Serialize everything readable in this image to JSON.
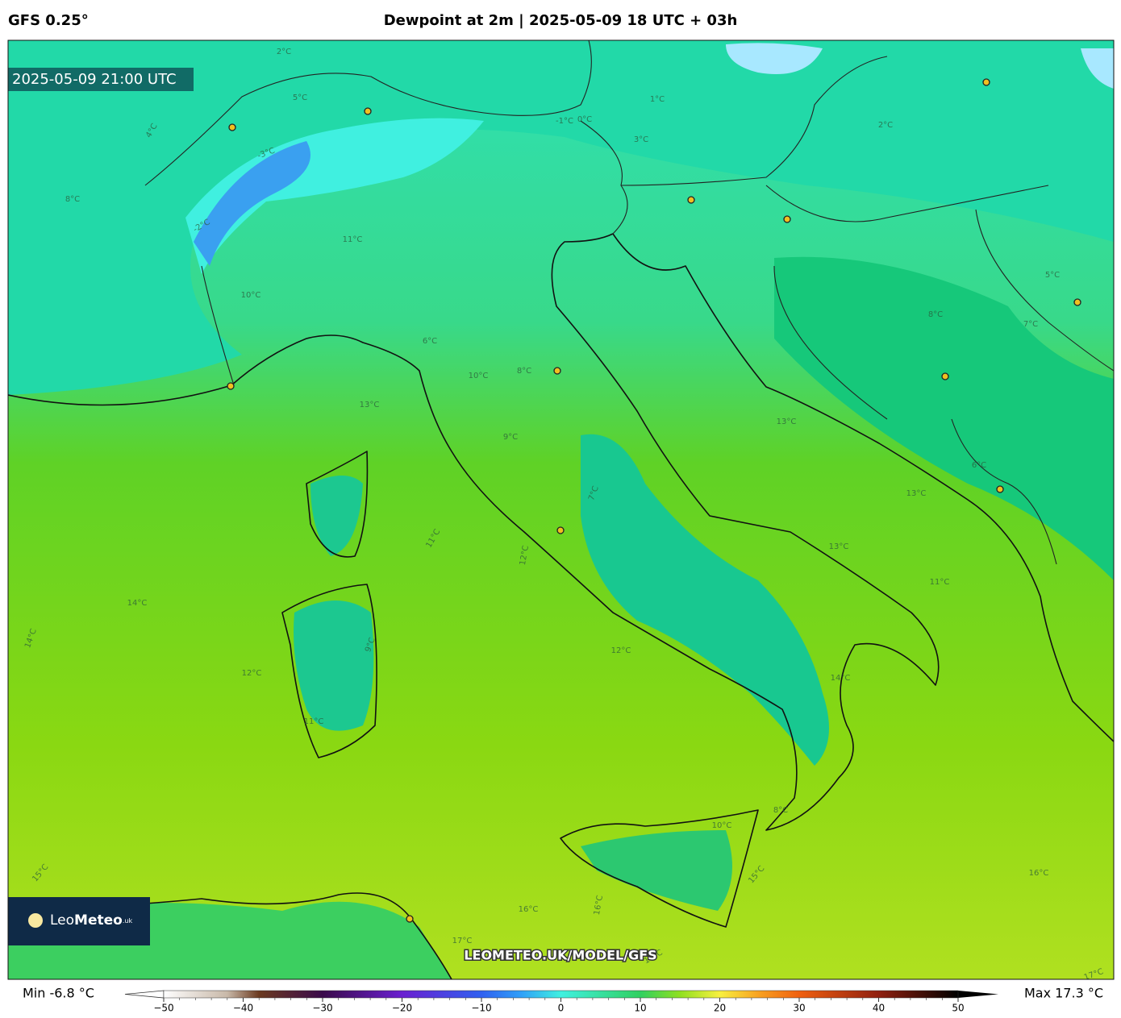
{
  "header": {
    "model": "GFS 0.25°",
    "title": "Dewpoint at 2m | 2025-05-09 18 UTC + 03h"
  },
  "map": {
    "valid_time": "2025-05-09 21:00 UTC",
    "watermark": "LEOMETEO.UK/MODEL/GFS",
    "logo": [
      "Leo",
      "Meteo",
      ".uk"
    ],
    "contour_labels": [
      "2°C",
      "5°C",
      "4°C",
      "8°C",
      "-3°C",
      "-2°C",
      "-1°C",
      "0°C",
      "3°C",
      "1°C",
      "2°C",
      "11°C",
      "10°C",
      "6°C",
      "7°C",
      "8°C",
      "13°C",
      "9°C",
      "10°C",
      "11°C",
      "12°C",
      "12°C",
      "14°C",
      "12°C",
      "11°C",
      "8°C",
      "7°C",
      "13°C",
      "13°C",
      "11°C",
      "14°C",
      "10°C",
      "15°C",
      "16°C",
      "16°C",
      "17°C",
      "16°C",
      "9°C",
      "5°C",
      "6°C",
      "8°C",
      "13°C",
      "14°C",
      "15°C",
      "16°C",
      "17°C"
    ]
  },
  "colorbar": {
    "min_label": "Min -6.8 °C",
    "max_label": "Max 17.3 °C",
    "lim": [
      -50,
      50
    ],
    "ticks": [
      {
        "value": -50,
        "label": "−50"
      },
      {
        "value": -40,
        "label": "−40"
      },
      {
        "value": -30,
        "label": "−30"
      },
      {
        "value": -20,
        "label": "−20"
      },
      {
        "value": -10,
        "label": "−10"
      },
      0,
      10,
      20,
      30,
      40,
      50
    ]
  }
}
